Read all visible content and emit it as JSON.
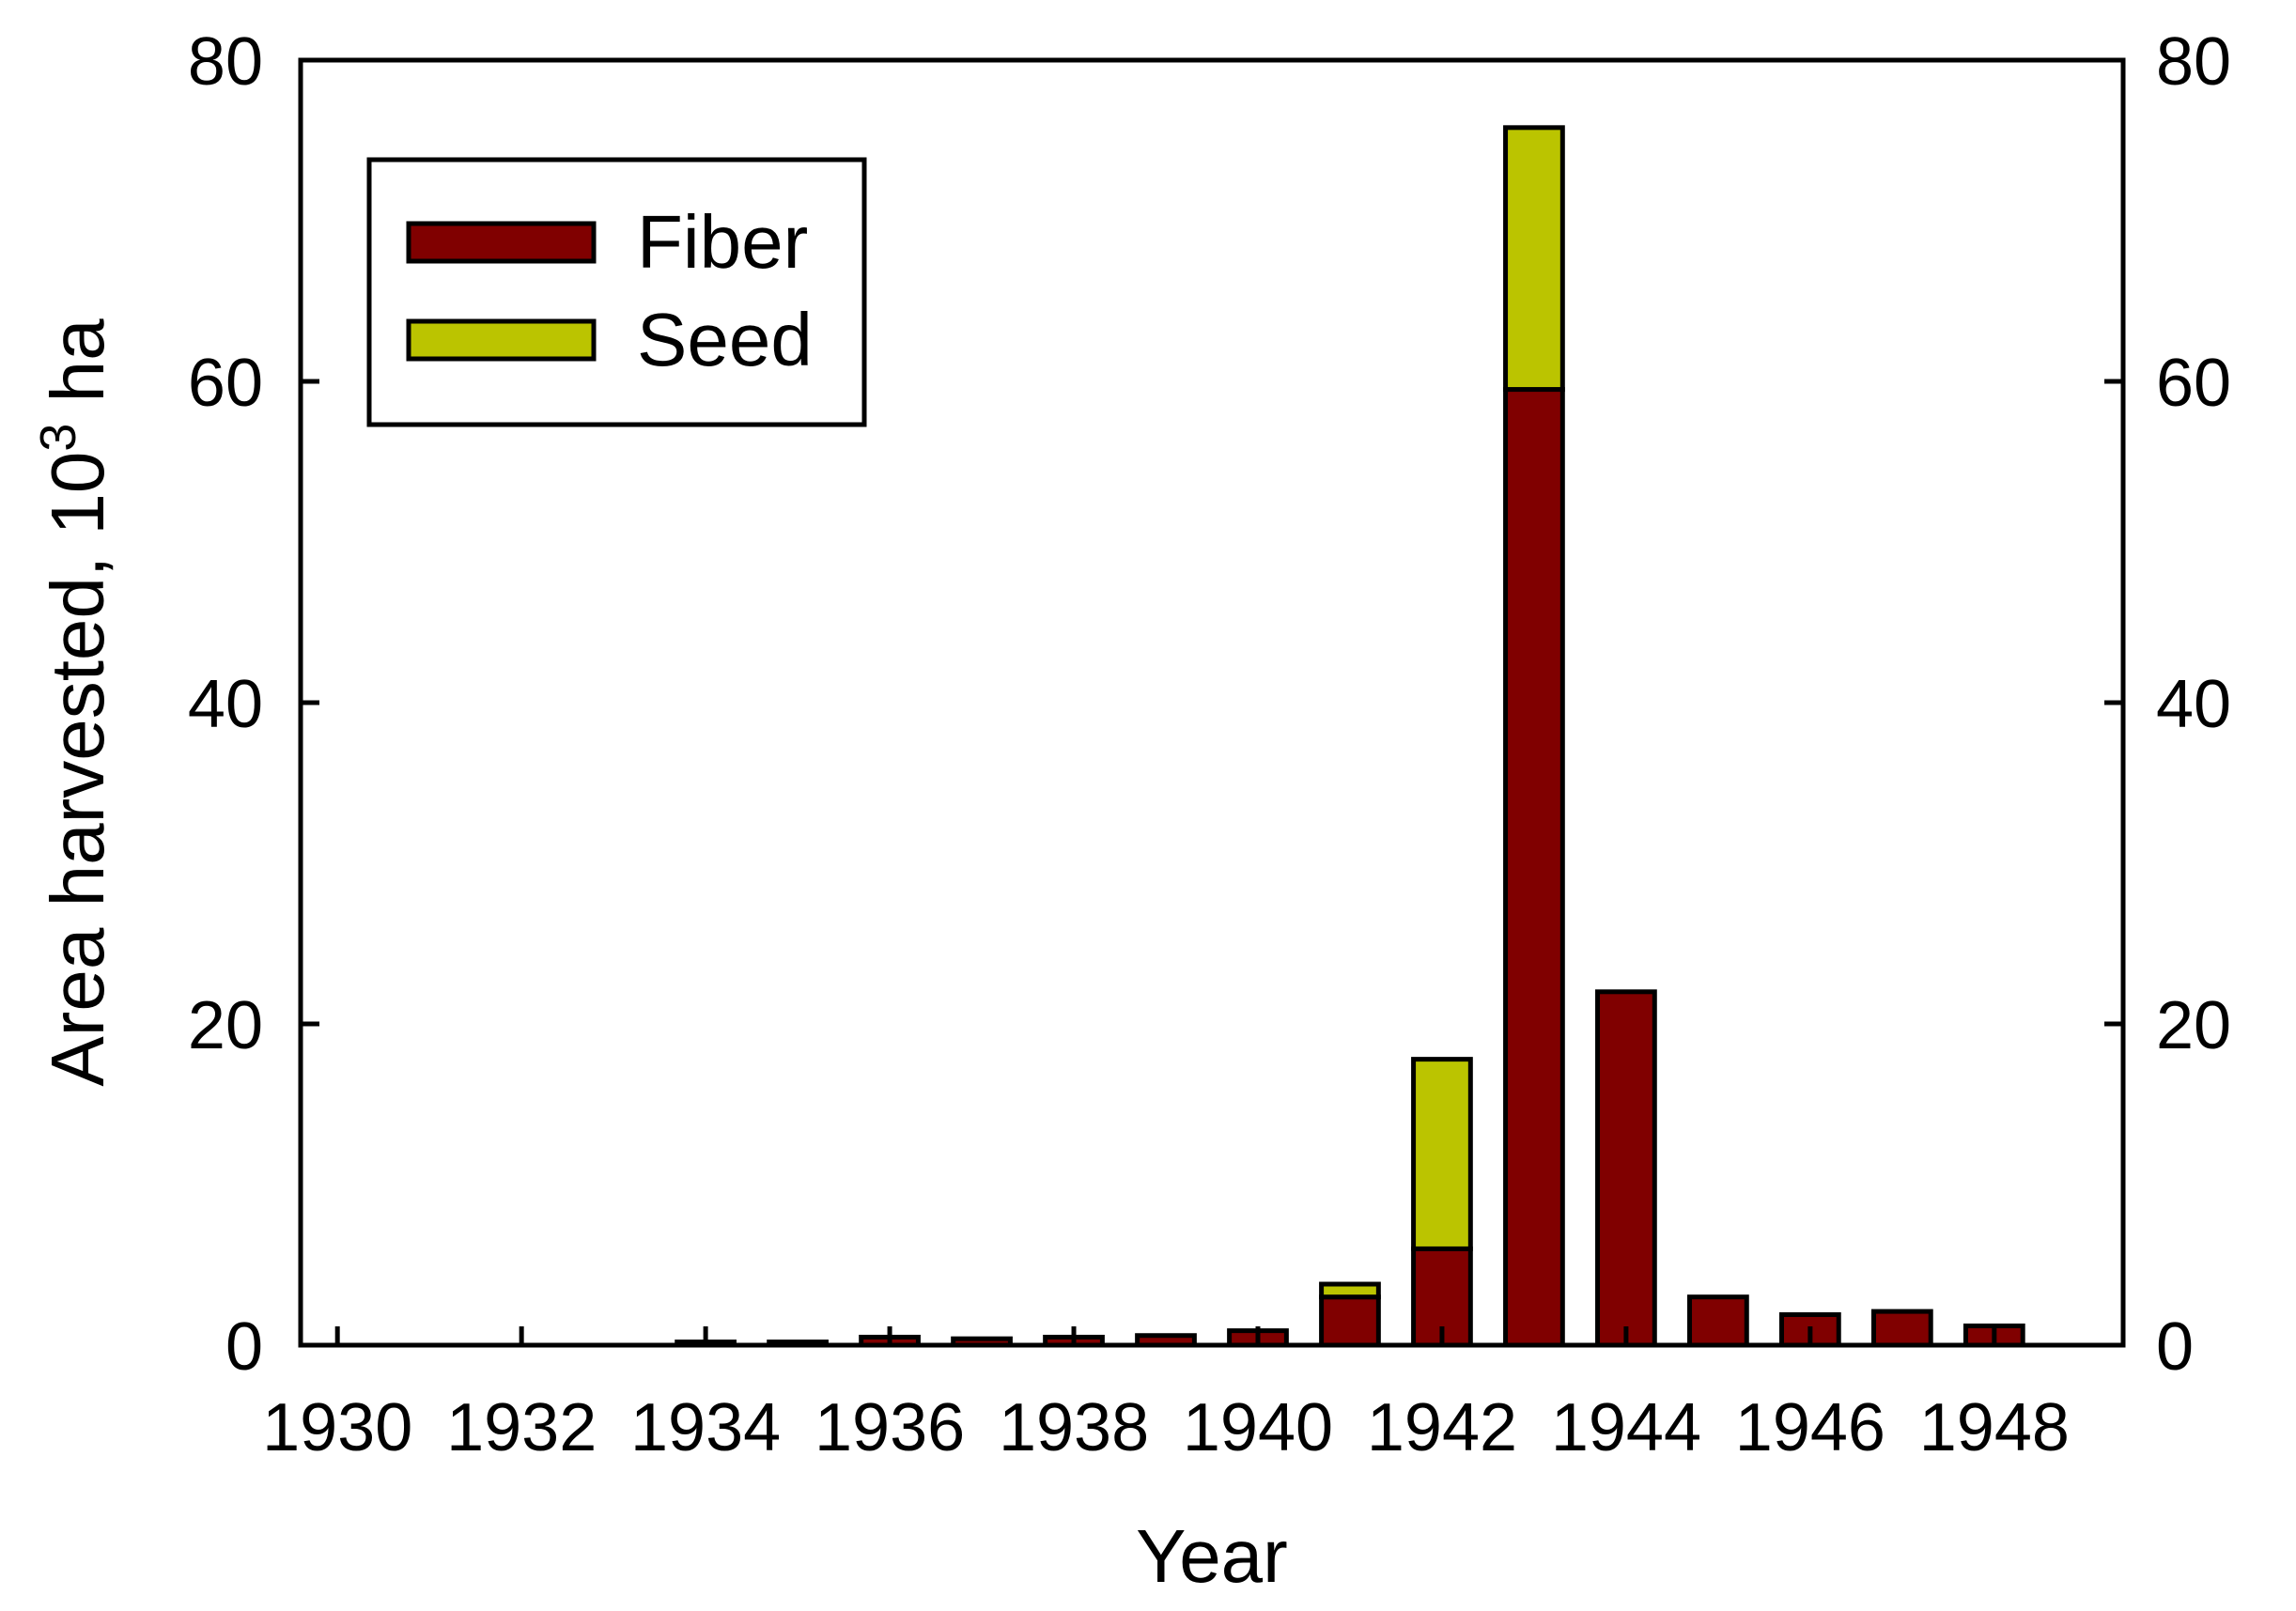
{
  "chart_data": {
    "type": "bar",
    "stacked": true,
    "xlabel": "Year",
    "ylabel": "Area harvested, 10",
    "ylabel_superscript": "3",
    "ylabel_suffix": " ha",
    "xlim": [
      1929.6,
      1949.4
    ],
    "ylim": [
      0,
      80
    ],
    "x_ticks": [
      1930,
      1932,
      1934,
      1936,
      1938,
      1940,
      1942,
      1944,
      1946,
      1948
    ],
    "y_ticks": [
      0,
      20,
      40,
      60,
      80
    ],
    "right_axis_ticks": [
      0,
      20,
      40,
      60,
      80
    ],
    "grid": false,
    "legend_position": "top-left",
    "categories": [
      1934,
      1935,
      1936,
      1937,
      1938,
      1939,
      1940,
      1941,
      1942,
      1943,
      1944,
      1945,
      1946,
      1947,
      1948
    ],
    "series": [
      {
        "name": "Fiber",
        "color": "#800000",
        "values": [
          0.2,
          0.2,
          0.5,
          0.4,
          0.5,
          0.6,
          0.9,
          3.0,
          6.0,
          59.5,
          22.0,
          3.0,
          1.9,
          2.1,
          1.2
        ]
      },
      {
        "name": "Seed",
        "color": "#BBC400",
        "values": [
          0,
          0,
          0,
          0,
          0,
          0,
          0,
          0.8,
          11.8,
          16.3,
          0,
          0,
          0,
          0,
          0
        ]
      }
    ]
  }
}
